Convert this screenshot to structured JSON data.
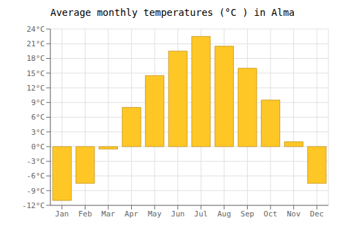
{
  "chart_data": {
    "type": "bar",
    "title": "Average monthly temperatures (°C ) in Alma",
    "categories": [
      "Jan",
      "Feb",
      "Mar",
      "Apr",
      "May",
      "Jun",
      "Jul",
      "Aug",
      "Sep",
      "Oct",
      "Nov",
      "Dec"
    ],
    "values": [
      -11,
      -7.5,
      -0.5,
      8,
      14.5,
      19.5,
      22.5,
      20.5,
      16,
      9.5,
      1,
      -7.5
    ],
    "color": "#FFC726",
    "ylim": [
      -12,
      24
    ],
    "yticks": [
      {
        "value": -12,
        "label": "-12°C"
      },
      {
        "value": -9,
        "label": "-9°C"
      },
      {
        "value": -6,
        "label": "-6°C"
      },
      {
        "value": -3,
        "label": "-3°C"
      },
      {
        "value": 0,
        "label": "0°C"
      },
      {
        "value": 3,
        "label": "3°C"
      },
      {
        "value": 6,
        "label": "6°C"
      },
      {
        "value": 9,
        "label": "9°C"
      },
      {
        "value": 12,
        "label": "12°C"
      },
      {
        "value": 15,
        "label": "15°C"
      },
      {
        "value": 18,
        "label": "18°C"
      },
      {
        "value": 21,
        "label": "21°C"
      },
      {
        "value": 24,
        "label": "24°C"
      }
    ],
    "grid": true
  }
}
